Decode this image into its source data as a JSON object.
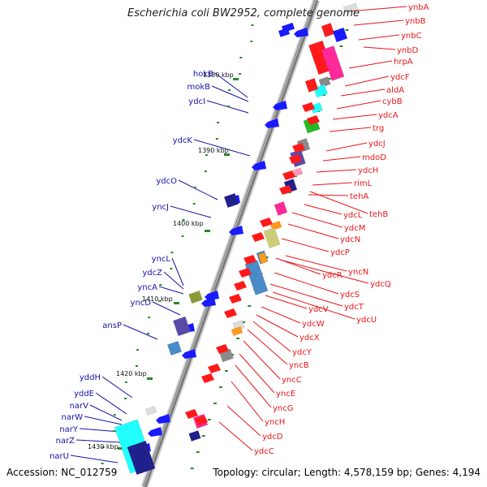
{
  "title": "Escherichia coli BW2952, complete genome",
  "accession": "Accession: NC_012759",
  "topology": "Topology: circular; Length: 4,578,159 bp; Genes: 4,194",
  "colors": {
    "forward_label": "#e8161b",
    "reverse_label": "#1414a8",
    "backbone": "#8a8a8a",
    "tick_marker": "#2a8a2a",
    "red_gene": "#ff1a1a",
    "blue_gene": "#1a1aff",
    "cyan_gene": "#22ffff",
    "magenta_gene": "#ff2a9a",
    "navy_gene": "#20208a",
    "violet_gene": "#5a4aa8",
    "steelblue_gene": "#4a8ac8",
    "grey_gene": "#8a8a8a",
    "green_gene": "#22bb22",
    "orange_gene": "#ff9a1a",
    "khaki_gene": "#cccc7a",
    "olive_gene": "#8a9a3a",
    "pink_gene": "#ff9ab8",
    "light_gene": "#dcdcdc"
  },
  "scale_marks": [
    "1380 kbp",
    "1390 kbp",
    "1400 kbp",
    "1410 kbp",
    "1420 kbp",
    "1430 kbp"
  ],
  "right_labels": [
    "ynbA",
    "ynbB",
    "ynbC",
    "ynbD",
    "hrpA",
    "ydcF",
    "aldA",
    "cybB",
    "ydcA",
    "trg",
    "ydcJ",
    "mdoD",
    "ydcH",
    "rimL",
    "tehA",
    "ydcL",
    "tehB",
    "ydcM",
    "ydcN",
    "ydcP",
    "ydcR",
    "yncN",
    "ydcQ",
    "ydcS",
    "ydcT",
    "ydcV",
    "ydcU",
    "ydcW",
    "ydcX",
    "ydcY",
    "yncB",
    "yncC",
    "yncE",
    "yncG",
    "yncH",
    "ydcD",
    "ydcC"
  ],
  "left_labels": [
    "hokB",
    "mokB",
    "ydcI",
    "ydcK",
    "ydcO",
    "yncJ",
    "yncL",
    "ydcZ",
    "yncA",
    "yncD",
    "ansP",
    "yddH",
    "yddE",
    "narV",
    "narW",
    "narY",
    "narZ",
    "narU"
  ]
}
